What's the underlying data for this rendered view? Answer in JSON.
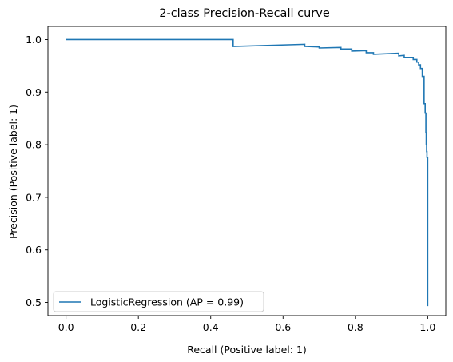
{
  "chart_data": {
    "type": "line",
    "title": "2-class Precision-Recall curve",
    "xlabel": "Recall (Positive label: 1)",
    "ylabel": "Precision (Positive label: 1)",
    "xlim": [
      -0.05,
      1.05
    ],
    "ylim": [
      0.475,
      1.025
    ],
    "xticks": [
      0.0,
      0.2,
      0.4,
      0.6,
      0.8,
      1.0
    ],
    "xtick_labels": [
      "0.0",
      "0.2",
      "0.4",
      "0.6",
      "0.8",
      "1.0"
    ],
    "yticks": [
      0.5,
      0.6,
      0.7,
      0.8,
      0.9,
      1.0
    ],
    "ytick_labels": [
      "0.5",
      "0.6",
      "0.7",
      "0.8",
      "0.9",
      "1.0"
    ],
    "grid": false,
    "legend_position": "lower-left",
    "series": [
      {
        "name": "LogisticRegression (AP = 0.99)",
        "color": "#1f77b4",
        "step": "post",
        "x": [
          0.0,
          0.462,
          0.462,
          0.66,
          0.66,
          0.7,
          0.7,
          0.76,
          0.76,
          0.79,
          0.79,
          0.83,
          0.83,
          0.85,
          0.85,
          0.92,
          0.92,
          0.935,
          0.935,
          0.96,
          0.96,
          0.97,
          0.97,
          0.975,
          0.975,
          0.98,
          0.98,
          0.985,
          0.985,
          0.99,
          0.99,
          0.993,
          0.993,
          0.995,
          0.995,
          0.996,
          0.996,
          0.997,
          0.997,
          0.998,
          0.998,
          0.999,
          0.999,
          1.0,
          1.0
        ],
        "y": [
          1.0,
          1.0,
          0.987,
          0.991,
          0.987,
          0.986,
          0.984,
          0.985,
          0.982,
          0.982,
          0.978,
          0.979,
          0.975,
          0.975,
          0.972,
          0.974,
          0.969,
          0.97,
          0.966,
          0.966,
          0.962,
          0.962,
          0.957,
          0.957,
          0.952,
          0.952,
          0.945,
          0.945,
          0.93,
          0.93,
          0.878,
          0.878,
          0.86,
          0.86,
          0.823,
          0.823,
          0.8,
          0.8,
          0.787,
          0.787,
          0.776,
          0.776,
          0.775,
          0.775,
          0.493
        ]
      }
    ]
  }
}
